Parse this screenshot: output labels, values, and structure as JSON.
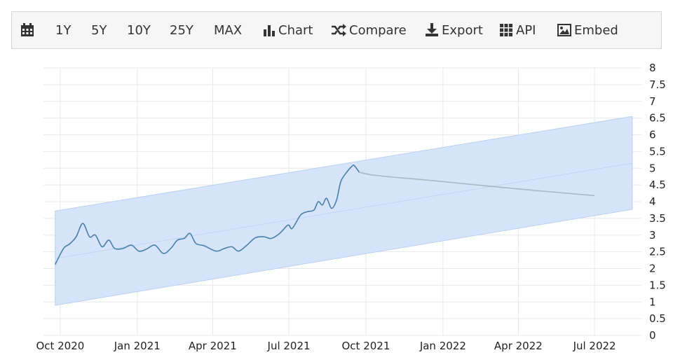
{
  "toolbar": {
    "calendar_icon": "calendar-icon",
    "range_buttons": [
      "1Y",
      "5Y",
      "10Y",
      "25Y",
      "MAX"
    ],
    "chart_label": "Chart",
    "compare_label": "Compare",
    "export_label": "Export",
    "api_label": "API",
    "embed_label": "Embed",
    "icons": {
      "chart": "bar-chart-icon",
      "compare": "shuffle-icon",
      "export": "download-icon",
      "api": "grid-icon",
      "embed": "image-icon"
    }
  },
  "colors": {
    "series_line": "#4a7fa8",
    "forecast_line": "#aab8c6",
    "band_fill": "#d5e4f9",
    "band_edge": "#b9cff0",
    "grid": "#e8e8e8"
  },
  "chart_data": {
    "type": "line",
    "title": "",
    "xlabel": "",
    "ylabel": "",
    "x_tick_labels": [
      "Oct 2020",
      "Jan 2021",
      "Apr 2021",
      "Jul 2021",
      "Oct 2021",
      "Jan 2022",
      "Apr 2022",
      "Jul 2022"
    ],
    "y_ticks": [
      0,
      0.5,
      1,
      1.5,
      2,
      2.5,
      3,
      3.5,
      4,
      4.5,
      5,
      5.5,
      6,
      6.5,
      7,
      7.5,
      8
    ],
    "ylim": [
      0,
      8
    ],
    "y_axis_position": "right",
    "grid": true,
    "series": [
      {
        "kind": "actual",
        "points": [
          [
            "2020-09-25",
            2.12
          ],
          [
            "2020-10-05",
            2.6
          ],
          [
            "2020-10-12",
            2.73
          ],
          [
            "2020-10-20",
            2.95
          ],
          [
            "2020-10-28",
            3.35
          ],
          [
            "2020-11-05",
            2.95
          ],
          [
            "2020-11-12",
            3.0
          ],
          [
            "2020-11-20",
            2.65
          ],
          [
            "2020-11-28",
            2.85
          ],
          [
            "2020-12-05",
            2.6
          ],
          [
            "2020-12-15",
            2.6
          ],
          [
            "2020-12-25",
            2.7
          ],
          [
            "2021-01-03",
            2.52
          ],
          [
            "2021-01-12",
            2.58
          ],
          [
            "2021-01-22",
            2.7
          ],
          [
            "2021-02-01",
            2.45
          ],
          [
            "2021-02-10",
            2.6
          ],
          [
            "2021-02-18",
            2.85
          ],
          [
            "2021-02-26",
            2.9
          ],
          [
            "2021-03-05",
            3.05
          ],
          [
            "2021-03-12",
            2.75
          ],
          [
            "2021-03-22",
            2.68
          ],
          [
            "2021-04-05",
            2.52
          ],
          [
            "2021-04-15",
            2.6
          ],
          [
            "2021-04-24",
            2.65
          ],
          [
            "2021-05-02",
            2.52
          ],
          [
            "2021-05-12",
            2.7
          ],
          [
            "2021-05-22",
            2.92
          ],
          [
            "2021-06-01",
            2.95
          ],
          [
            "2021-06-10",
            2.9
          ],
          [
            "2021-06-20",
            3.05
          ],
          [
            "2021-06-30",
            3.3
          ],
          [
            "2021-07-05",
            3.2
          ],
          [
            "2021-07-15",
            3.6
          ],
          [
            "2021-07-23",
            3.7
          ],
          [
            "2021-07-31",
            3.75
          ],
          [
            "2021-08-05",
            4.0
          ],
          [
            "2021-08-10",
            3.9
          ],
          [
            "2021-08-15",
            4.1
          ],
          [
            "2021-08-21",
            3.8
          ],
          [
            "2021-08-27",
            4.05
          ],
          [
            "2021-09-01",
            4.6
          ],
          [
            "2021-09-08",
            4.88
          ],
          [
            "2021-09-14",
            5.05
          ],
          [
            "2021-09-17",
            5.08
          ],
          [
            "2021-09-23",
            4.88
          ]
        ]
      },
      {
        "kind": "forecast",
        "points": [
          [
            "2021-09-23",
            4.88
          ],
          [
            "2021-10-15",
            4.78
          ],
          [
            "2022-01-01",
            4.6
          ],
          [
            "2022-04-01",
            4.38
          ],
          [
            "2022-07-01",
            4.18
          ]
        ]
      }
    ],
    "trend_band": {
      "x_start": "2020-09-25",
      "x_end": "2022-08-15",
      "upper": [
        3.72,
        6.55
      ],
      "center": [
        2.3,
        5.15
      ],
      "lower": [
        0.9,
        3.77
      ]
    }
  }
}
